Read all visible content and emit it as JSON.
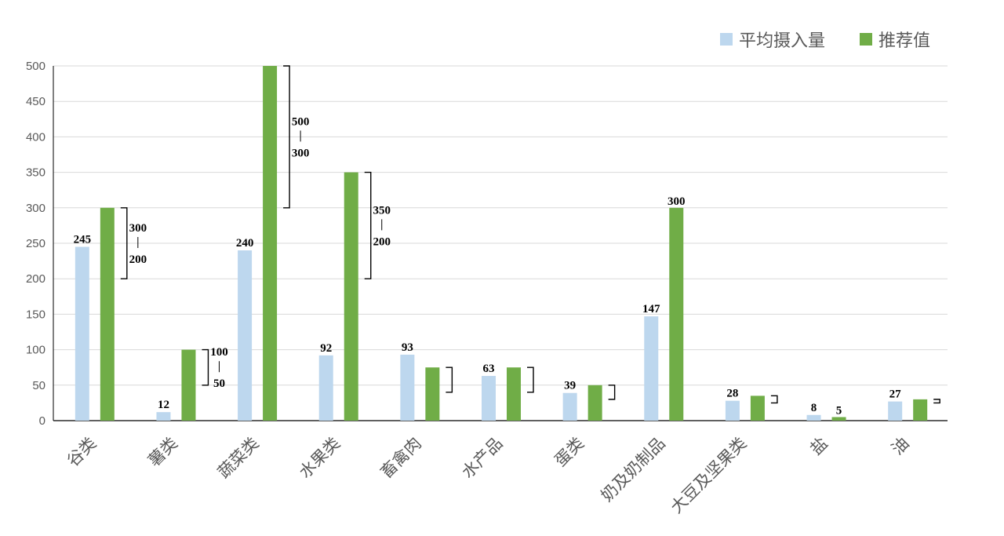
{
  "colors": {
    "avg": "#bdd7ee",
    "rec": "#70ad47",
    "grid": "#d9d9d9",
    "axis": "#000000",
    "text": "#595959"
  },
  "legend": {
    "avg_label": "平均摄入量",
    "rec_label": "推荐值"
  },
  "chart_data": {
    "type": "bar",
    "categories": [
      "谷类",
      "薯类",
      "蔬菜类",
      "水果类",
      "畜禽肉",
      "水产品",
      "蛋类",
      "奶及奶制品",
      "大豆及坚果类",
      "盐",
      "油"
    ],
    "series": [
      {
        "name": "平均摄入量",
        "values": [
          245,
          12,
          240,
          92,
          93,
          63,
          39,
          147,
          28,
          8,
          27
        ]
      },
      {
        "name": "推荐值",
        "values": [
          300,
          100,
          500,
          350,
          75,
          75,
          50,
          300,
          35,
          5,
          30
        ]
      }
    ],
    "avg_labels": [
      "245",
      "12",
      "240",
      "92",
      "93",
      "63",
      "39",
      "147",
      "28",
      "8",
      "27"
    ],
    "rec_labels": [
      "",
      "",
      "",
      "",
      "",
      "",
      "",
      "300",
      "",
      "5",
      ""
    ],
    "ranges": [
      {
        "index": 0,
        "low": 200,
        "high": 300,
        "low_label": "200",
        "high_label": "300"
      },
      {
        "index": 1,
        "low": 50,
        "high": 100,
        "low_label": "50",
        "high_label": "100"
      },
      {
        "index": 2,
        "low": 300,
        "high": 500,
        "low_label": "300",
        "high_label": "500"
      },
      {
        "index": 3,
        "low": 200,
        "high": 350,
        "low_label": "200",
        "high_label": "350"
      },
      {
        "index": 4,
        "low": 40,
        "high": 75,
        "low_label": "",
        "high_label": ""
      },
      {
        "index": 5,
        "low": 40,
        "high": 75,
        "low_label": "",
        "high_label": ""
      },
      {
        "index": 6,
        "low": 30,
        "high": 50,
        "low_label": "",
        "high_label": ""
      },
      {
        "index": 8,
        "low": 25,
        "high": 35,
        "low_label": "",
        "high_label": ""
      },
      {
        "index": 10,
        "low": 25,
        "high": 30,
        "low_label": "",
        "high_label": ""
      }
    ],
    "yticks": [
      "0",
      "50",
      "100",
      "150",
      "200",
      "250",
      "300",
      "350",
      "400",
      "450",
      "500"
    ],
    "ylim": [
      0,
      500
    ],
    "grid": true,
    "legend_position": "top-right"
  }
}
